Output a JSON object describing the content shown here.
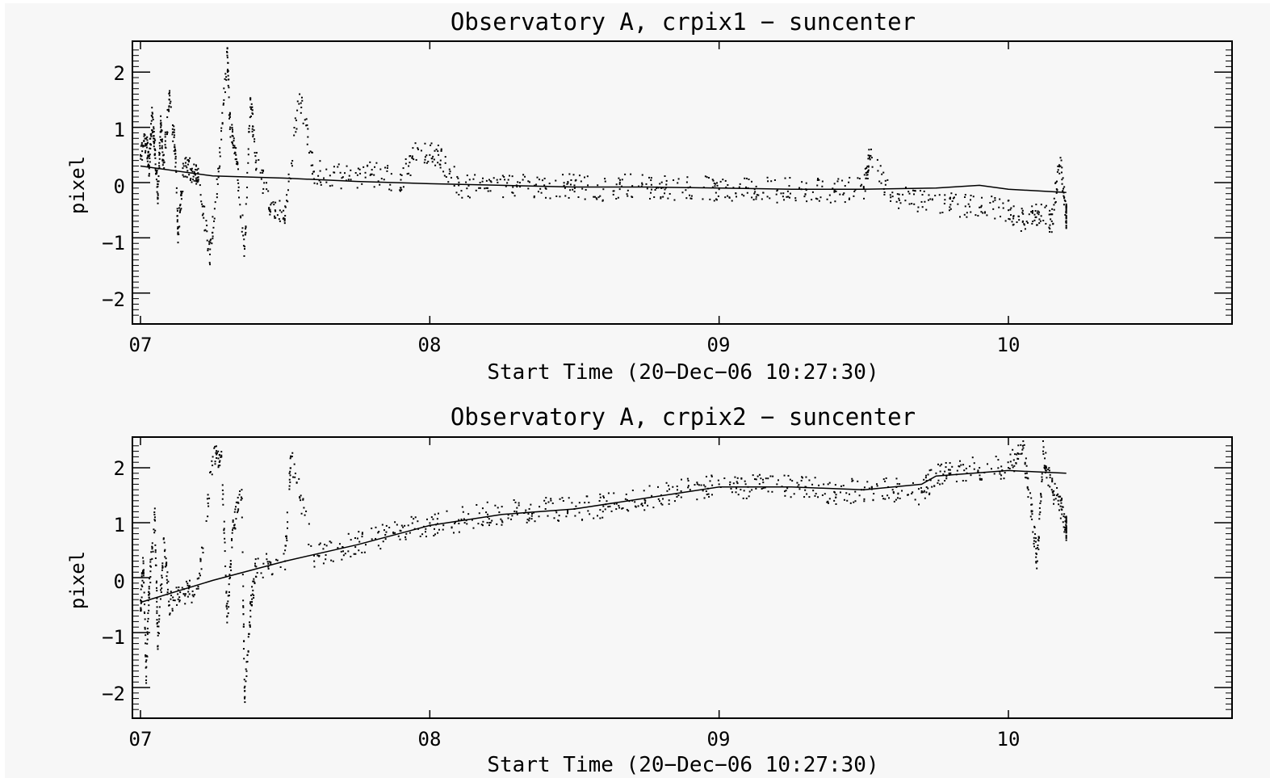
{
  "chart_data": [
    {
      "type": "scatter",
      "title": "Observatory A,  crpix1 − suncenter",
      "xlabel": "Start Time (20−Dec−06 10:27:30)",
      "ylabel": "pixel",
      "xlim": [
        7.0,
        10.8
      ],
      "ylim": [
        -2.5,
        2.5
      ],
      "xticks": [
        {
          "value": 7,
          "label": "07"
        },
        {
          "value": 8,
          "label": "08"
        },
        {
          "value": 9,
          "label": "09"
        },
        {
          "value": 10,
          "label": "10"
        }
      ],
      "yticks": [
        {
          "value": 2,
          "label": "2"
        },
        {
          "value": 1,
          "label": "1"
        },
        {
          "value": 0,
          "label": "0"
        },
        {
          "value": -1,
          "label": "−1"
        },
        {
          "value": -2,
          "label": "−2"
        }
      ],
      "trend": [
        [
          7.0,
          0.3
        ],
        [
          7.25,
          0.12
        ],
        [
          7.5,
          0.08
        ],
        [
          7.75,
          0.02
        ],
        [
          8.0,
          -0.02
        ],
        [
          8.25,
          -0.05
        ],
        [
          8.5,
          -0.08
        ],
        [
          8.75,
          -0.08
        ],
        [
          9.0,
          -0.1
        ],
        [
          9.25,
          -0.12
        ],
        [
          9.5,
          -0.12
        ],
        [
          9.75,
          -0.1
        ],
        [
          9.9,
          -0.05
        ],
        [
          10.0,
          -0.12
        ],
        [
          10.2,
          -0.18
        ]
      ],
      "points": [
        [
          7.0,
          0.5
        ],
        [
          7.02,
          0.8
        ],
        [
          7.03,
          0.3
        ],
        [
          7.04,
          1.2
        ],
        [
          7.05,
          0.6
        ],
        [
          7.06,
          -0.2
        ],
        [
          7.07,
          1.0
        ],
        [
          7.08,
          0.4
        ],
        [
          7.1,
          1.5
        ],
        [
          7.12,
          0.6
        ],
        [
          7.13,
          -0.9
        ],
        [
          7.15,
          0.3
        ],
        [
          7.18,
          0.2
        ],
        [
          7.2,
          0.1
        ],
        [
          7.24,
          -1.3
        ],
        [
          7.27,
          0.2
        ],
        [
          7.3,
          2.3
        ],
        [
          7.31,
          1.0
        ],
        [
          7.33,
          0.5
        ],
        [
          7.36,
          -1.2
        ],
        [
          7.38,
          1.5
        ],
        [
          7.4,
          0.4
        ],
        [
          7.45,
          -0.4
        ],
        [
          7.5,
          -0.6
        ],
        [
          7.55,
          1.6
        ],
        [
          7.6,
          0.2
        ],
        [
          7.7,
          0.1
        ],
        [
          7.8,
          0.15
        ],
        [
          7.9,
          0.05
        ],
        [
          7.96,
          0.6
        ],
        [
          8.03,
          0.5
        ],
        [
          8.1,
          -0.05
        ],
        [
          8.2,
          -0.1
        ],
        [
          8.3,
          -0.05
        ],
        [
          8.4,
          -0.1
        ],
        [
          8.5,
          -0.05
        ],
        [
          8.6,
          -0.12
        ],
        [
          8.7,
          -0.06
        ],
        [
          8.8,
          -0.1
        ],
        [
          8.9,
          -0.08
        ],
        [
          9.0,
          -0.12
        ],
        [
          9.1,
          -0.1
        ],
        [
          9.2,
          -0.15
        ],
        [
          9.3,
          -0.12
        ],
        [
          9.4,
          -0.15
        ],
        [
          9.5,
          -0.1
        ],
        [
          9.52,
          0.45
        ],
        [
          9.6,
          -0.25
        ],
        [
          9.7,
          -0.35
        ],
        [
          9.8,
          -0.4
        ],
        [
          9.9,
          -0.45
        ],
        [
          10.0,
          -0.5
        ],
        [
          10.05,
          -0.7
        ],
        [
          10.1,
          -0.55
        ],
        [
          10.15,
          -0.7
        ],
        [
          10.18,
          0.45
        ],
        [
          10.2,
          -0.6
        ]
      ]
    },
    {
      "type": "scatter",
      "title": "Observatory A,  crpix2 − suncenter",
      "xlabel": "Start Time (20−Dec−06 10:27:30)",
      "ylabel": "pixel",
      "xlim": [
        7.0,
        10.8
      ],
      "ylim": [
        -2.5,
        2.5
      ],
      "xticks": [
        {
          "value": 7,
          "label": "07"
        },
        {
          "value": 8,
          "label": "08"
        },
        {
          "value": 9,
          "label": "09"
        },
        {
          "value": 10,
          "label": "10"
        }
      ],
      "yticks": [
        {
          "value": 2,
          "label": "2"
        },
        {
          "value": 1,
          "label": "1"
        },
        {
          "value": 0,
          "label": "0"
        },
        {
          "value": -1,
          "label": "−1"
        },
        {
          "value": -2,
          "label": "−2"
        }
      ],
      "trend": [
        [
          7.0,
          -0.45
        ],
        [
          7.25,
          -0.05
        ],
        [
          7.5,
          0.3
        ],
        [
          7.75,
          0.6
        ],
        [
          8.0,
          0.95
        ],
        [
          8.25,
          1.15
        ],
        [
          8.5,
          1.25
        ],
        [
          8.75,
          1.45
        ],
        [
          9.0,
          1.65
        ],
        [
          9.25,
          1.65
        ],
        [
          9.5,
          1.6
        ],
        [
          9.7,
          1.7
        ],
        [
          9.75,
          1.85
        ],
        [
          10.0,
          1.95
        ],
        [
          10.2,
          1.9
        ]
      ],
      "points": [
        [
          7.0,
          -0.6
        ],
        [
          7.01,
          0.3
        ],
        [
          7.02,
          -1.8
        ],
        [
          7.03,
          -0.2
        ],
        [
          7.05,
          1.1
        ],
        [
          7.06,
          -1.3
        ],
        [
          7.08,
          0.7
        ],
        [
          7.1,
          -0.5
        ],
        [
          7.15,
          -0.3
        ],
        [
          7.2,
          -0.2
        ],
        [
          7.25,
          2.2
        ],
        [
          7.28,
          2.2
        ],
        [
          7.3,
          -0.7
        ],
        [
          7.32,
          0.9
        ],
        [
          7.35,
          1.6
        ],
        [
          7.36,
          -2.2
        ],
        [
          7.38,
          -0.6
        ],
        [
          7.4,
          0.2
        ],
        [
          7.5,
          0.3
        ],
        [
          7.52,
          2.2
        ],
        [
          7.6,
          0.4
        ],
        [
          7.7,
          0.55
        ],
        [
          7.8,
          0.7
        ],
        [
          7.9,
          0.85
        ],
        [
          8.0,
          0.95
        ],
        [
          8.1,
          1.05
        ],
        [
          8.2,
          1.15
        ],
        [
          8.3,
          1.2
        ],
        [
          8.4,
          1.25
        ],
        [
          8.5,
          1.25
        ],
        [
          8.6,
          1.3
        ],
        [
          8.7,
          1.4
        ],
        [
          8.8,
          1.5
        ],
        [
          8.9,
          1.6
        ],
        [
          9.0,
          1.7
        ],
        [
          9.1,
          1.65
        ],
        [
          9.2,
          1.7
        ],
        [
          9.3,
          1.65
        ],
        [
          9.4,
          1.55
        ],
        [
          9.5,
          1.6
        ],
        [
          9.6,
          1.6
        ],
        [
          9.7,
          1.55
        ],
        [
          9.75,
          1.9
        ],
        [
          9.8,
          1.9
        ],
        [
          9.9,
          2.0
        ],
        [
          10.0,
          2.0
        ],
        [
          10.05,
          2.4
        ],
        [
          10.08,
          1.2
        ],
        [
          10.1,
          0.3
        ],
        [
          10.12,
          2.3
        ],
        [
          10.15,
          1.6
        ],
        [
          10.18,
          1.3
        ],
        [
          10.2,
          0.9
        ]
      ]
    }
  ]
}
